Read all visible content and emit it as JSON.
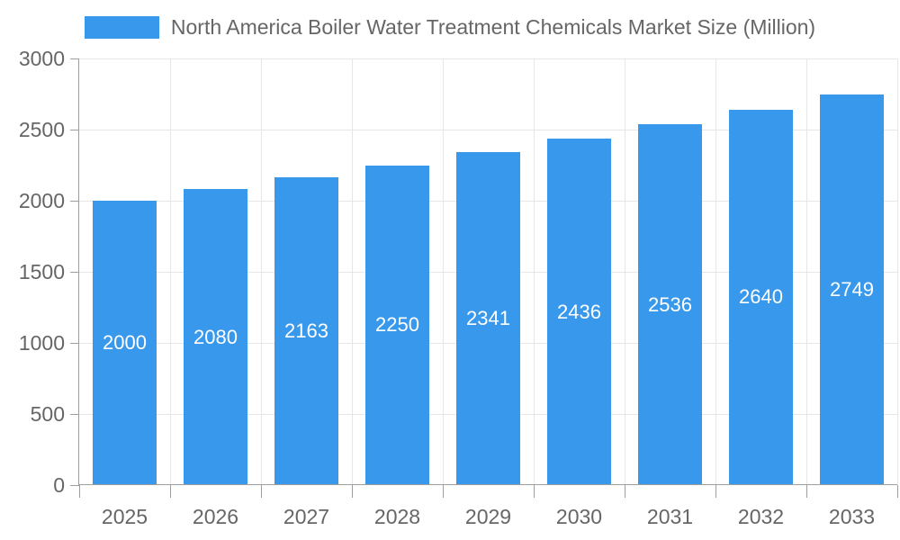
{
  "chart_data": {
    "type": "bar",
    "title": "North America Boiler Water Treatment Chemicals Market Size (Million)",
    "categories": [
      "2025",
      "2026",
      "2027",
      "2028",
      "2029",
      "2030",
      "2031",
      "2032",
      "2033"
    ],
    "values": [
      2000,
      2080,
      2163,
      2250,
      2341,
      2436,
      2536,
      2640,
      2749
    ],
    "series": [
      {
        "name": "North America Boiler Water Treatment Chemicals Market Size (Million)",
        "values": [
          2000,
          2080,
          2163,
          2250,
          2341,
          2436,
          2536,
          2640,
          2749
        ]
      }
    ],
    "xlabel": "",
    "ylabel": "",
    "ylim": [
      0,
      3000
    ],
    "yticks": [
      0,
      500,
      1000,
      1500,
      2000,
      2500,
      3000
    ],
    "grid": true,
    "legend_position": "top",
    "value_labels_inside_bars": true
  },
  "colors": {
    "bar": "#3898ec",
    "grid": "#e6e6e6",
    "axis": "#9e9e9e",
    "text": "#666666",
    "bar_label": "#ffffff",
    "background": "#ffffff"
  }
}
